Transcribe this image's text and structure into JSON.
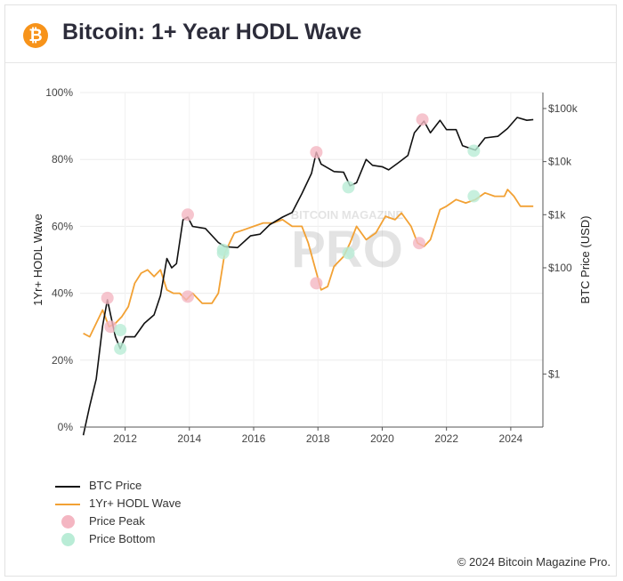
{
  "header": {
    "logo_glyph": "₿",
    "title": "Bitcoin: 1+ Year HODL Wave"
  },
  "watermark": {
    "line1": "BITCOIN MAGAZINE",
    "line2": "PRO"
  },
  "footer": {
    "credit": "© 2024 Bitcoin Magazine Pro."
  },
  "colors": {
    "btc_price": "#111111",
    "hodl_wave": "#f2a134",
    "price_peak": "#f4b6c2",
    "price_bottom": "#b9ecd6",
    "brand": "#f7931a"
  },
  "chart_data": {
    "type": "line",
    "title": "Bitcoin: 1+ Year HODL Wave",
    "xlabel": "",
    "ylabel": "1Yr+ HODL Wave",
    "y2label": "BTC Price (USD)",
    "xlim": [
      2010.6,
      2025.0
    ],
    "ylim": [
      0,
      100
    ],
    "y2lim_log": [
      0.1,
      200000
    ],
    "y2scale": "log",
    "x_ticks": [
      2012,
      2014,
      2016,
      2018,
      2020,
      2022,
      2024
    ],
    "x_tick_labels": [
      "2012",
      "2014",
      "2016",
      "2018",
      "2020",
      "2022",
      "2024"
    ],
    "y_ticks": [
      0,
      20,
      40,
      60,
      80,
      100
    ],
    "y_tick_labels": [
      "0%",
      "20%",
      "40%",
      "60%",
      "80%",
      "100%"
    ],
    "y2_ticks": [
      1,
      100,
      1000,
      10000,
      100000
    ],
    "y2_tick_labels": [
      "$1",
      "$100",
      "$1k",
      "$10k",
      "$100k"
    ],
    "grid": true,
    "legend_position": "bottom-left",
    "series": [
      {
        "name": "BTC Price",
        "axis": "y2",
        "x": [
          2010.7,
          2010.9,
          2011.1,
          2011.3,
          2011.45,
          2011.55,
          2011.7,
          2011.85,
          2012.0,
          2012.3,
          2012.6,
          2012.9,
          2013.1,
          2013.3,
          2013.45,
          2013.6,
          2013.8,
          2013.95,
          2014.1,
          2014.5,
          2014.9,
          2015.1,
          2015.5,
          2015.9,
          2016.2,
          2016.5,
          2016.9,
          2017.2,
          2017.5,
          2017.8,
          2017.95,
          2018.1,
          2018.5,
          2018.8,
          2019.0,
          2019.2,
          2019.5,
          2019.7,
          2020.0,
          2020.2,
          2020.5,
          2020.8,
          2021.0,
          2021.3,
          2021.5,
          2021.8,
          2022.0,
          2022.3,
          2022.5,
          2022.9,
          2023.2,
          2023.6,
          2023.9,
          2024.2,
          2024.5,
          2024.7
        ],
        "y": [
          0.07,
          0.25,
          0.8,
          8,
          25,
          13,
          5,
          3,
          5,
          5,
          9,
          13,
          30,
          150,
          100,
          120,
          800,
          900,
          600,
          550,
          300,
          250,
          240,
          400,
          430,
          650,
          900,
          1100,
          2500,
          6000,
          15000,
          9000,
          6500,
          6300,
          3500,
          4000,
          11000,
          8500,
          8000,
          7000,
          9500,
          13000,
          35000,
          58000,
          35000,
          60000,
          40000,
          40000,
          20000,
          16500,
          28000,
          30000,
          42000,
          68000,
          60000,
          62000
        ]
      },
      {
        "name": "1Yr+ HODL Wave",
        "axis": "y",
        "x": [
          2010.7,
          2010.9,
          2011.1,
          2011.3,
          2011.5,
          2011.7,
          2011.9,
          2012.1,
          2012.3,
          2012.5,
          2012.7,
          2012.9,
          2013.1,
          2013.3,
          2013.5,
          2013.7,
          2013.9,
          2014.1,
          2014.4,
          2014.7,
          2014.9,
          2015.1,
          2015.4,
          2015.7,
          2016.0,
          2016.3,
          2016.6,
          2016.9,
          2017.2,
          2017.5,
          2017.7,
          2017.9,
          2018.1,
          2018.3,
          2018.5,
          2018.8,
          2019.0,
          2019.2,
          2019.5,
          2019.8,
          2020.1,
          2020.4,
          2020.6,
          2020.9,
          2021.1,
          2021.3,
          2021.5,
          2021.8,
          2022.0,
          2022.3,
          2022.6,
          2022.9,
          2023.2,
          2023.5,
          2023.8,
          2023.9,
          2024.1,
          2024.3,
          2024.6,
          2024.7
        ],
        "y": [
          28,
          27,
          31,
          35,
          30,
          31,
          33,
          36,
          43,
          46,
          47,
          45,
          47,
          41,
          40,
          40,
          38,
          40,
          37,
          37,
          40,
          52,
          58,
          59,
          60,
          61,
          61,
          62,
          60,
          60,
          55,
          48,
          41,
          42,
          48,
          51,
          55,
          60,
          56,
          58,
          63,
          62,
          64,
          60,
          55,
          54,
          56,
          65,
          66,
          68,
          67,
          68,
          70,
          69,
          69,
          71,
          69,
          66,
          66,
          66
        ]
      },
      {
        "name": "Price Peak",
        "axis": "y2",
        "marker": "circle",
        "x": [
          2011.45,
          2013.95,
          2017.95,
          2021.25
        ],
        "y": [
          27,
          1000,
          15000,
          62000
        ]
      },
      {
        "name": "Price Bottom",
        "axis": "y2",
        "marker": "circle",
        "x": [
          2011.85,
          2015.05,
          2018.95,
          2022.85
        ],
        "y": [
          3,
          190,
          3300,
          16000
        ]
      },
      {
        "name": "Price Peak",
        "axis": "y",
        "marker": "circle",
        "show_in_legend": false,
        "x": [
          2011.55,
          2013.95,
          2017.95,
          2021.15
        ],
        "y": [
          30,
          39,
          43,
          55
        ]
      },
      {
        "name": "Price Bottom",
        "axis": "y",
        "marker": "circle",
        "show_in_legend": false,
        "x": [
          2011.85,
          2015.05,
          2018.95,
          2022.85
        ],
        "y": [
          29,
          53,
          52,
          69
        ]
      }
    ]
  }
}
